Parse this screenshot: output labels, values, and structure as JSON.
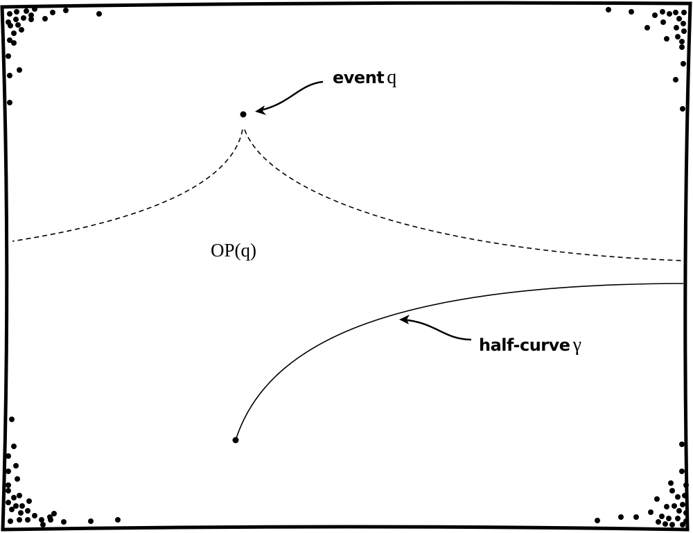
{
  "labels": {
    "event_word": "event",
    "event_symbol": "q",
    "region": "OP(q)",
    "curve_word": "half-curve",
    "curve_symbol": "γ"
  },
  "colors": {
    "ink": "#000000",
    "background": "#ffffff"
  }
}
